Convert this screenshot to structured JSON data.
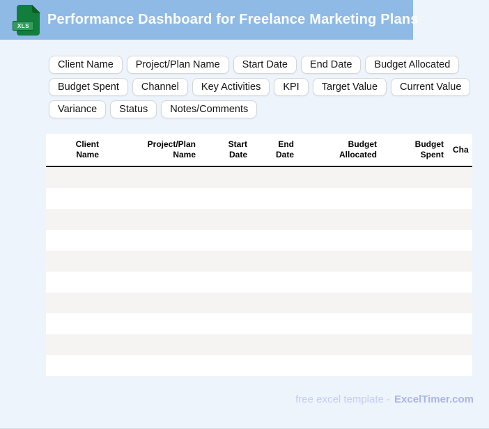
{
  "header": {
    "title": "Performance Dashboard for Freelance Marketing Plans",
    "file_icon_label": "XLS"
  },
  "chips": [
    "Client Name",
    "Project/Plan Name",
    "Start Date",
    "End Date",
    "Budget Allocated",
    "Budget Spent",
    "Channel",
    "Key Activities",
    "KPI",
    "Target Value",
    "Current Value",
    "Variance",
    "Status",
    "Notes/Comments"
  ],
  "table": {
    "columns": [
      {
        "line1": "Client",
        "line2": "Name"
      },
      {
        "line1": "Project/Plan",
        "line2": "Name"
      },
      {
        "line1": "Start",
        "line2": "Date"
      },
      {
        "line1": "End",
        "line2": "Date"
      },
      {
        "line1": "Budget",
        "line2": "Allocated"
      },
      {
        "line1": "Budget",
        "line2": "Spent"
      },
      {
        "line1": "Cha",
        "line2": ""
      }
    ],
    "visible_empty_rows": 10
  },
  "footer": {
    "prefix": "free excel template -",
    "brand": "ExcelTimer.com"
  },
  "colors": {
    "header_bar_blue": "#8fbae6",
    "page_background": "#edf4fc",
    "icon_green_body": "#117e3b",
    "icon_green_badge": "#2f9e5b",
    "row_stripe_gray": "#f5f4f2",
    "table_divider_black": "#121212",
    "footer_text": "#c2cdf3",
    "footer_brand": "#a9b5e6"
  }
}
